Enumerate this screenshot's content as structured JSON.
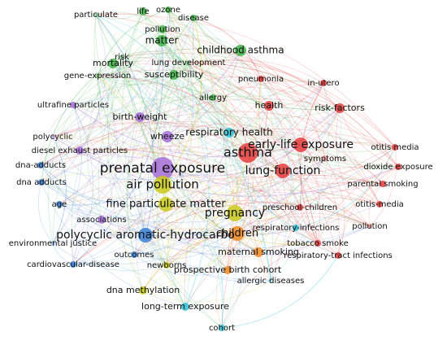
{
  "clusters": [
    {
      "color": "#e53c3c",
      "nodes": [
        "asthma",
        "early-life exposure",
        "lung-function",
        "health",
        "risk-factors",
        "pneumonia",
        "in-utero",
        "symptoms",
        "otitis media",
        "dioxide exposure",
        "parental smoking",
        "otitis-media",
        "preschool-children",
        "tobacco smoke",
        "respiratory-tract infections",
        "pollution"
      ]
    },
    {
      "color": "#3fb447",
      "nodes": [
        "life",
        "ozone",
        "particulate",
        "disease",
        "pollution",
        "matter",
        "childhood asthma",
        "risk",
        "lung development",
        "mortality",
        "susceptibility",
        "gene-expression",
        "allergy"
      ]
    },
    {
      "color": "#a66ed8",
      "nodes": [
        "ultrafine particles",
        "birth-weight",
        "polycyclic",
        "diesel exhaust particles",
        "wheeze",
        "prenatal exposure",
        "associations"
      ]
    },
    {
      "color": "#3a7fd5",
      "nodes": [
        "dna-adducts",
        "dna adducts",
        "age",
        "polycyclic aromatic-hydrocarbo",
        "environmental justice",
        "cardiovascular-disease",
        "outcomes"
      ]
    },
    {
      "color": "#c9c91c",
      "nodes": [
        "air pollution",
        "fine particulate matter",
        "pregnancy",
        "newborns",
        "dna methylation"
      ]
    },
    {
      "color": "#f08a24",
      "nodes": [
        "children",
        "prospective birth cohort",
        "maternal smoking"
      ]
    },
    {
      "color": "#2fbfd6",
      "nodes": [
        "respiratory health",
        "respiratory-infections",
        "allergic diseases",
        "long-term exposure",
        "cohort"
      ]
    }
  ]
}
